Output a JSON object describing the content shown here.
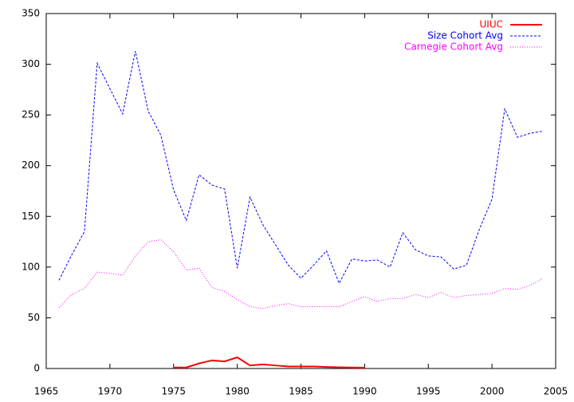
{
  "chart_data": {
    "type": "line",
    "x": [
      1966,
      1967,
      1968,
      1969,
      1970,
      1971,
      1972,
      1973,
      1974,
      1975,
      1976,
      1977,
      1978,
      1979,
      1980,
      1981,
      1982,
      1983,
      1984,
      1985,
      1986,
      1987,
      1988,
      1989,
      1990,
      1991,
      1992,
      1993,
      1994,
      1995,
      1996,
      1997,
      1998,
      1999,
      2000,
      2001,
      2002,
      2003,
      2004
    ],
    "series": [
      {
        "name": "UIUC",
        "color": "#ff0000",
        "dash": "solid",
        "values": [
          null,
          null,
          null,
          null,
          null,
          null,
          null,
          null,
          null,
          1,
          1,
          5,
          8,
          7,
          11,
          3,
          4,
          3,
          2,
          2,
          2,
          1.5,
          1.2,
          1,
          0.8,
          null,
          null,
          null,
          null,
          null,
          null,
          null,
          null,
          null,
          null,
          null,
          null,
          null,
          null
        ]
      },
      {
        "name": "Size Cohort Avg",
        "color": "#0000ff",
        "dash": "dashed",
        "values": [
          87,
          112,
          135,
          301,
          276,
          251,
          313,
          254,
          230,
          176,
          146,
          191,
          181,
          177,
          99,
          169,
          142,
          122,
          102,
          89,
          102,
          116,
          84,
          108,
          106,
          107,
          100,
          134,
          117,
          111,
          110,
          98,
          102,
          137,
          167,
          256,
          228,
          232,
          234
        ]
      },
      {
        "name": "Carnegie Cohort Avg",
        "color": "#ff00ff",
        "dash": "dotted",
        "values": [
          60,
          73,
          79,
          95,
          94,
          92,
          111,
          125,
          127,
          115,
          97,
          99,
          80,
          76,
          68,
          61,
          59,
          62,
          64,
          61,
          61,
          61,
          61,
          66,
          71,
          66,
          69,
          69,
          73,
          70,
          75,
          70,
          72,
          73,
          74,
          79,
          78,
          82,
          89
        ]
      }
    ],
    "xlim": [
      1965,
      2005
    ],
    "xticks": [
      1965,
      1970,
      1975,
      1980,
      1985,
      1990,
      1995,
      2000,
      2005
    ],
    "ylim": [
      0,
      350
    ],
    "yticks": [
      0,
      50,
      100,
      150,
      200,
      250,
      300,
      350
    ],
    "legend": "top-right",
    "grid": false
  }
}
